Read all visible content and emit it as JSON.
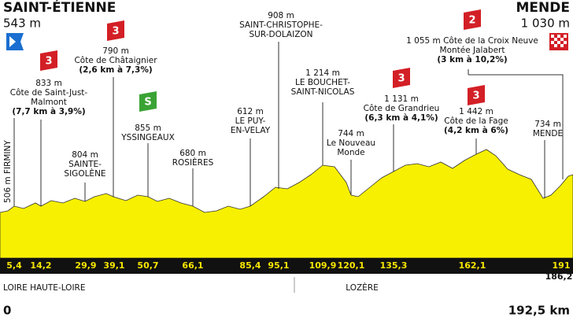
{
  "start": {
    "name": "SAINT-ÉTIENNE",
    "altitude": "543 m"
  },
  "finish": {
    "name": "MENDE",
    "altitude": "1 030 m"
  },
  "distance_start": "0",
  "distance_end": "192,5 km",
  "regions": [
    "LOIRE HAUTE-LOIRE",
    "LOZÈRE"
  ],
  "km_markers": [
    "5,4",
    "14,2",
    "29,9",
    "39,1",
    "50,7",
    "66,1",
    "85,4",
    "95,1",
    "109,9",
    "120,1",
    "135,3",
    "162,1",
    "191",
    "186,2"
  ],
  "points": [
    {
      "lines": [
        "506 m FIRMINY"
      ]
    },
    {
      "badge": "3",
      "lines": [
        "833 m",
        "Côte de Saint-Just-",
        "Malmont"
      ],
      "stats": "(7,7 km à 3,9%)"
    },
    {
      "lines": [
        "804 m",
        "SAINTE-",
        "SIGOLÈNE"
      ]
    },
    {
      "badge": "3",
      "lines": [
        "790 m",
        "Côte de Châtaignier"
      ],
      "stats": "(2,6 km à 7,3%)"
    },
    {
      "badge": "S",
      "lines": [
        "855 m",
        "YSSINGEAUX"
      ]
    },
    {
      "lines": [
        "680 m",
        "ROSIÈRES"
      ]
    },
    {
      "lines": [
        "612 m",
        "LE PUY-",
        "EN-VELAY"
      ]
    },
    {
      "lines": [
        "908 m",
        "SAINT-CHRISTOPHE-",
        "SUR-DOLAIZON"
      ]
    },
    {
      "lines": [
        "1 214 m",
        "LE BOUCHET-",
        "SAINT-NICOLAS"
      ]
    },
    {
      "lines": [
        "744 m",
        "Le Nouveau",
        "Monde"
      ]
    },
    {
      "badge": "3",
      "lines": [
        "1 131 m",
        "Côte de Grandrieu"
      ],
      "stats": "(6,3 km à 4,1%)"
    },
    {
      "badge": "3",
      "lines": [
        "1 442 m",
        "Côte de la Fage"
      ],
      "stats": "(4,2 km à 6%)"
    },
    {
      "lines": [
        "734 m",
        "MENDE"
      ]
    },
    {
      "badge": "2",
      "lines": [
        "1 055 m Côte de la Croix Neuve",
        "Montée Jalabert"
      ],
      "stats": "(3 km à 10,2%)"
    }
  ]
}
